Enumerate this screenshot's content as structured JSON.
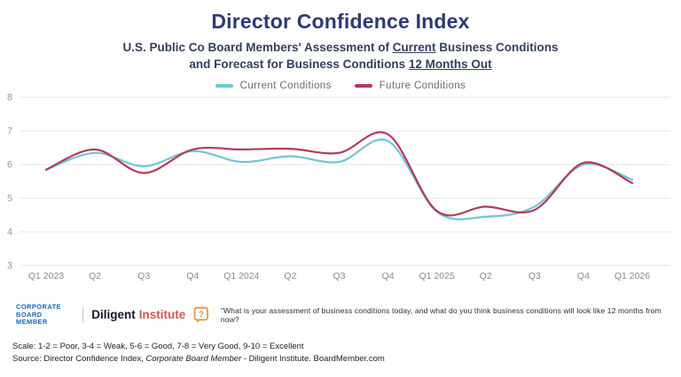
{
  "title": "Director Confidence Index",
  "subtitle": {
    "line1_pre": "U.S. Public Co Board Members' Assessment of ",
    "line1_underline": "Current",
    "line1_post": " Business Conditions",
    "line2_pre": "and Forecast for Business Conditions ",
    "line2_underline": "12 Months Out"
  },
  "legend": {
    "items": [
      {
        "label": "Current Conditions",
        "color": "#74c4d5"
      },
      {
        "label": "Future Conditions",
        "color": "#b23a5c"
      }
    ]
  },
  "chart_data": {
    "type": "line",
    "title": "Director Confidence Index",
    "xlabel": "",
    "ylabel": "",
    "ylim": [
      3,
      8
    ],
    "yticks": [
      3,
      4,
      5,
      6,
      7,
      8
    ],
    "grid": true,
    "legend_position": "top",
    "categories": [
      "Q1 2023",
      "Q2",
      "Q3",
      "Q4",
      "Q1 2024",
      "Q2",
      "Q3",
      "Q4",
      "Q1 2025",
      "Q2",
      "Q3",
      "Q4",
      "Q1 2026"
    ],
    "series": [
      {
        "name": "Current Conditions",
        "color": "#74c4d5",
        "values": [
          5.85,
          6.35,
          5.95,
          6.4,
          6.08,
          6.25,
          6.08,
          6.7,
          4.6,
          4.45,
          4.75,
          6.0,
          5.55
        ]
      },
      {
        "name": "Future Conditions",
        "color": "#b23a5c",
        "values": [
          5.85,
          6.45,
          5.75,
          6.45,
          6.45,
          6.47,
          6.35,
          6.9,
          4.62,
          4.75,
          4.65,
          6.05,
          5.45
        ]
      }
    ]
  },
  "footer": {
    "logo_line1": "CORPORATE",
    "logo_line2": "BOARD MEMBER",
    "brand_black": "Diligent",
    "brand_red": "Institute",
    "question_icon": "question-bubble",
    "quote": "\"What is your assessment of business conditions today, and what do you think business conditions will look like 12 months from now?",
    "scale_note": "Scale: 1-2 = Poor, 3-4 = Weak, 5-6 = Good, 7-8 = Very Good, 9-10 = Excellent",
    "source_pre": "Source: Director Confidence Index, ",
    "source_italic": "Corporate Board Member",
    "source_post": " - Diligent Institute. BoardMember.com"
  }
}
